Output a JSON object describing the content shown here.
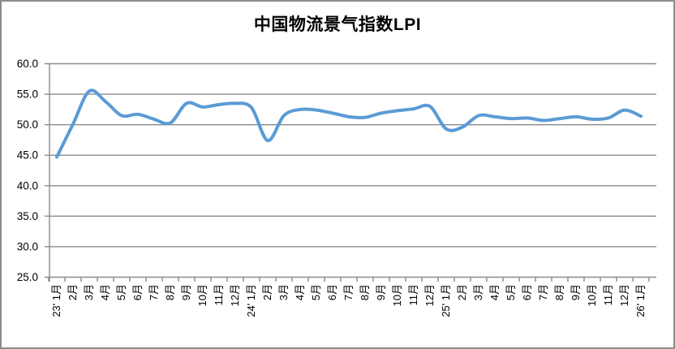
{
  "chart_data": {
    "type": "line",
    "title": "中国物流景气指数LPI",
    "legend": "none",
    "grid": "horizontal",
    "smooth": true,
    "ylim": [
      25,
      60
    ],
    "ytick_step": 5,
    "y_tick_labels": [
      "60.0",
      "55.0",
      "50.0",
      "45.0",
      "40.0",
      "35.0",
      "30.0",
      "25.0"
    ],
    "categories": [
      "23' 1月",
      "2月",
      "3月",
      "4月",
      "5月",
      "6月",
      "7月",
      "8月",
      "9月",
      "10月",
      "11月",
      "12月",
      "24' 1月",
      "2月",
      "3月",
      "4月",
      "5月",
      "6月",
      "7月",
      "8月",
      "9月",
      "10月",
      "11月",
      "12月",
      "25' 1月",
      "2月",
      "3月",
      "4月",
      "5月",
      "6月",
      "7月",
      "8月",
      "9月",
      "10月",
      "11月",
      "12月",
      "26' 1月"
    ],
    "series": [
      {
        "name": "中国物流景气指数LPI",
        "color": "#5B9BD5",
        "values": [
          44.7,
          50.1,
          55.5,
          53.8,
          51.5,
          51.7,
          50.9,
          50.3,
          53.5,
          52.9,
          53.3,
          53.5,
          52.8,
          47.4,
          51.5,
          52.5,
          52.4,
          51.9,
          51.3,
          51.2,
          51.9,
          52.3,
          52.6,
          53.0,
          49.3,
          49.6,
          51.5,
          51.3,
          51.0,
          51.1,
          50.7,
          51.0,
          51.3,
          50.9,
          51.1,
          52.4,
          51.4
        ]
      }
    ],
    "colors": {
      "line": "#5B9BD5",
      "grid": "#8A8A8A",
      "axis": "#8A8A8A",
      "border": "#8C8C8C",
      "text": "#000000",
      "background": "#FFFFFF"
    }
  }
}
